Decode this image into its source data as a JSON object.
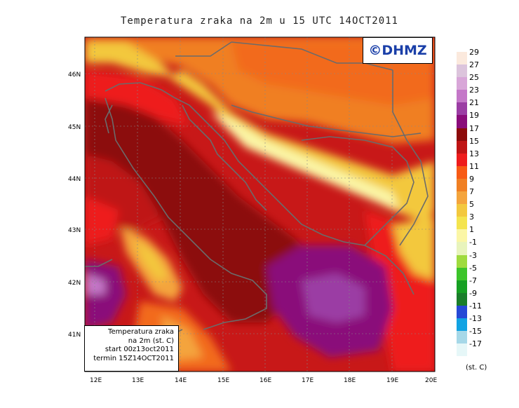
{
  "title": "Temperatura zraka na 2m u 15 UTC 14OCT2011",
  "logo": "©DHMZ",
  "info": {
    "line1": "Temperatura zraka",
    "line2": "na 2m (st. C)",
    "line3": "start 00z13oct2011",
    "line4": "termin 15Z14OCT2011"
  },
  "axes": {
    "lon_labels": [
      "12E",
      "13E",
      "14E",
      "15E",
      "16E",
      "17E",
      "18E",
      "19E",
      "20E"
    ],
    "lat_labels": [
      "46N",
      "45N",
      "44N",
      "43N",
      "42N",
      "41N"
    ]
  },
  "legend": {
    "unit": "(st. C)",
    "labels": [
      "29",
      "27",
      "25",
      "23",
      "21",
      "19",
      "17",
      "15",
      "13",
      "11",
      "9",
      "7",
      "5",
      "3",
      "1",
      "-1",
      "-3",
      "-5",
      "-7",
      "-9",
      "-11",
      "-13",
      "-15",
      "-17"
    ],
    "colors": [
      "#fbe9dd",
      "#dcc4dc",
      "#d8a6d8",
      "#c477c8",
      "#9b3da4",
      "#8a0c7a",
      "#8c0a0a",
      "#bf1414",
      "#ee1c1c",
      "#f75a14",
      "#f07f22",
      "#f4a43c",
      "#f3c83e",
      "#f4e44e",
      "#fbf6a6",
      "#e8f4bc",
      "#9fdb3e",
      "#3cc42a",
      "#16a022",
      "#1a7e2a",
      "#2649d6",
      "#11a3e3",
      "#a6d8e8",
      "#e6f7f8"
    ]
  }
}
